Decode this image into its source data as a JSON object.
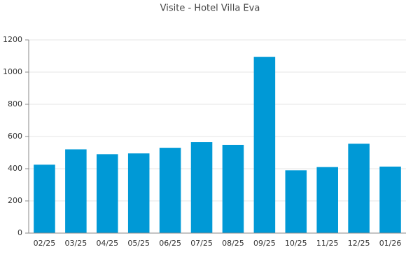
{
  "chart_data": {
    "type": "bar",
    "title": "Visite - Hotel Villa Eva",
    "categories": [
      "02/25",
      "03/25",
      "04/25",
      "05/25",
      "06/25",
      "07/25",
      "08/25",
      "09/25",
      "10/25",
      "11/25",
      "12/25",
      "01/26"
    ],
    "values": [
      425,
      520,
      490,
      495,
      530,
      565,
      548,
      1095,
      390,
      410,
      555,
      413
    ],
    "color": "#0099d6",
    "ylim": [
      0,
      1200
    ],
    "yticks": [
      0,
      200,
      400,
      600,
      800,
      1000,
      1200
    ],
    "grid": true
  }
}
